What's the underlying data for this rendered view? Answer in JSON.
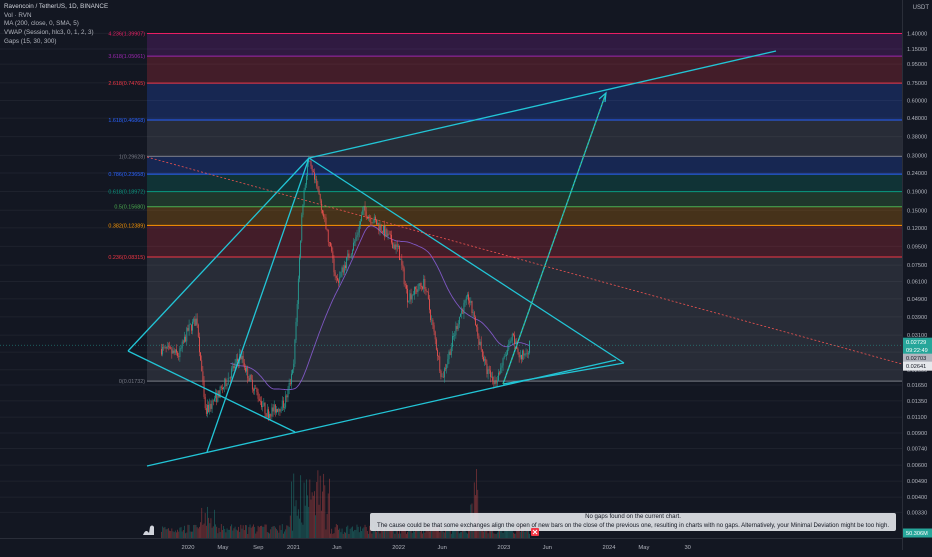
{
  "legend": {
    "symbol": "Ravencoin / TetherUS, 1D, BINANCE",
    "vol": "Vol · RVN",
    "ma": "MA (200, close, 0, SMA, 5)",
    "vwap": "VWAP (Session, hlc3, 0, 1, 2, 3)",
    "gaps": "Gaps (15, 30, 300)"
  },
  "price_axis": {
    "unit": "USDT",
    "labels": [
      "1.40000",
      "1.15000",
      "0.95000",
      "0.75000",
      "0.60000",
      "0.48000",
      "0.38000",
      "0.30000",
      "0.24000",
      "0.19000",
      "0.15000",
      "0.12000",
      "0.09500",
      "0.07500",
      "0.06100",
      "0.04900",
      "0.03900",
      "0.03100",
      "0.02500",
      "0.02000",
      "0.01650",
      "0.01350",
      "0.01100",
      "0.00900",
      "0.00740",
      "0.00600",
      "0.00490",
      "0.00400",
      "0.00330"
    ],
    "last_price": "0.02729",
    "countdown": "09:22:49",
    "ma_label": "0.02703",
    "vwap_label": "0.02641",
    "volume_label": "50.306M"
  },
  "time_axis": {
    "labels": [
      "2020",
      "May",
      "Sep",
      "2021",
      "Jun",
      "2022",
      "Jun",
      "2023",
      "Jun",
      "2024",
      "May",
      "30"
    ]
  },
  "fib_levels": [
    {
      "ratio": 4.236,
      "text": "4.236(1.39907)",
      "color": "#e91e63"
    },
    {
      "ratio": 3.618,
      "text": "3.618(1.05061)",
      "color": "#9c27b0"
    },
    {
      "ratio": 2.618,
      "text": "2.618(0.74765)",
      "color": "#f23645"
    },
    {
      "ratio": 1.618,
      "text": "1.618(0.46868)",
      "color": "#2962ff"
    },
    {
      "ratio": 1,
      "text": "1(0.29628)",
      "color": "#787b86"
    },
    {
      "ratio": 0.786,
      "text": "0.786(0.23658)",
      "color": "#2962ff"
    },
    {
      "ratio": 0.618,
      "text": "0.618(0.18972)",
      "color": "#089981"
    },
    {
      "ratio": 0.5,
      "text": "0.5(0.15680)",
      "color": "#4caf50"
    },
    {
      "ratio": 0.382,
      "text": "0.382(0.12389)",
      "color": "#ff9800"
    },
    {
      "ratio": 0.236,
      "text": "0.236(0.08315)",
      "color": "#f23645"
    },
    {
      "ratio": 0,
      "text": "0(0.01732)",
      "color": "#787b86"
    }
  ],
  "gaps_message": {
    "line1": "No gaps found on the current chart.",
    "line2": "The cause could be that some exchanges align the open of new bars on the close of the previous one, resulting in charts with no gaps. Alternatively, your Minimal Deviation might be too high."
  },
  "colors": {
    "background": "#131722",
    "up": "#26a69a",
    "down": "#ef5350",
    "trendline": "#22c5d6",
    "ma_line": "#7e57c2"
  },
  "chart_data": {
    "type": "candlestick",
    "title": "Ravencoin / TetherUS, 1D, BINANCE",
    "y_scale": "log",
    "ylim": [
      0.0032,
      1.6
    ],
    "x_ticks": [
      "2020",
      "May",
      "Sep",
      "2021",
      "Jun",
      "2022",
      "Jun",
      "2023",
      "Jun",
      "2024",
      "May",
      "30"
    ],
    "approx_close_path": [
      {
        "date": "2019-10",
        "close": 0.026
      },
      {
        "date": "2019-12",
        "close": 0.024
      },
      {
        "date": "2020-01",
        "close": 0.033
      },
      {
        "date": "2020-02",
        "close": 0.038
      },
      {
        "date": "2020-03",
        "close": 0.0115
      },
      {
        "date": "2020-05",
        "close": 0.016
      },
      {
        "date": "2020-07",
        "close": 0.024
      },
      {
        "date": "2020-08",
        "close": 0.018
      },
      {
        "date": "2020-10",
        "close": 0.0115
      },
      {
        "date": "2020-12",
        "close": 0.013
      },
      {
        "date": "2021-01",
        "close": 0.02
      },
      {
        "date": "2021-02",
        "close": 0.16
      },
      {
        "date": "2021-02-20",
        "close": 0.28
      },
      {
        "date": "2021-04",
        "close": 0.18
      },
      {
        "date": "2021-06",
        "close": 0.06
      },
      {
        "date": "2021-08",
        "close": 0.1
      },
      {
        "date": "2021-09",
        "close": 0.15
      },
      {
        "date": "2021-11",
        "close": 0.12
      },
      {
        "date": "2022-01",
        "close": 0.09
      },
      {
        "date": "2022-02",
        "close": 0.05
      },
      {
        "date": "2022-04",
        "close": 0.06
      },
      {
        "date": "2022-06",
        "close": 0.018
      },
      {
        "date": "2022-08",
        "close": 0.04
      },
      {
        "date": "2022-09",
        "close": 0.05
      },
      {
        "date": "2022-11",
        "close": 0.02
      },
      {
        "date": "2022-12",
        "close": 0.017
      },
      {
        "date": "2023-02",
        "close": 0.03
      },
      {
        "date": "2023-03",
        "close": 0.023
      },
      {
        "date": "2023-04",
        "close": 0.0273
      }
    ],
    "fib_ratios": [
      4.236,
      3.618,
      2.618,
      1.618,
      1,
      0.786,
      0.618,
      0.5,
      0.382,
      0.236,
      0
    ],
    "fib_prices": [
      1.39907,
      1.05061,
      0.74765,
      0.46868,
      0.29628,
      0.23658,
      0.18972,
      0.1568,
      0.12389,
      0.08315,
      0.01732
    ],
    "last_price": 0.02729
  }
}
